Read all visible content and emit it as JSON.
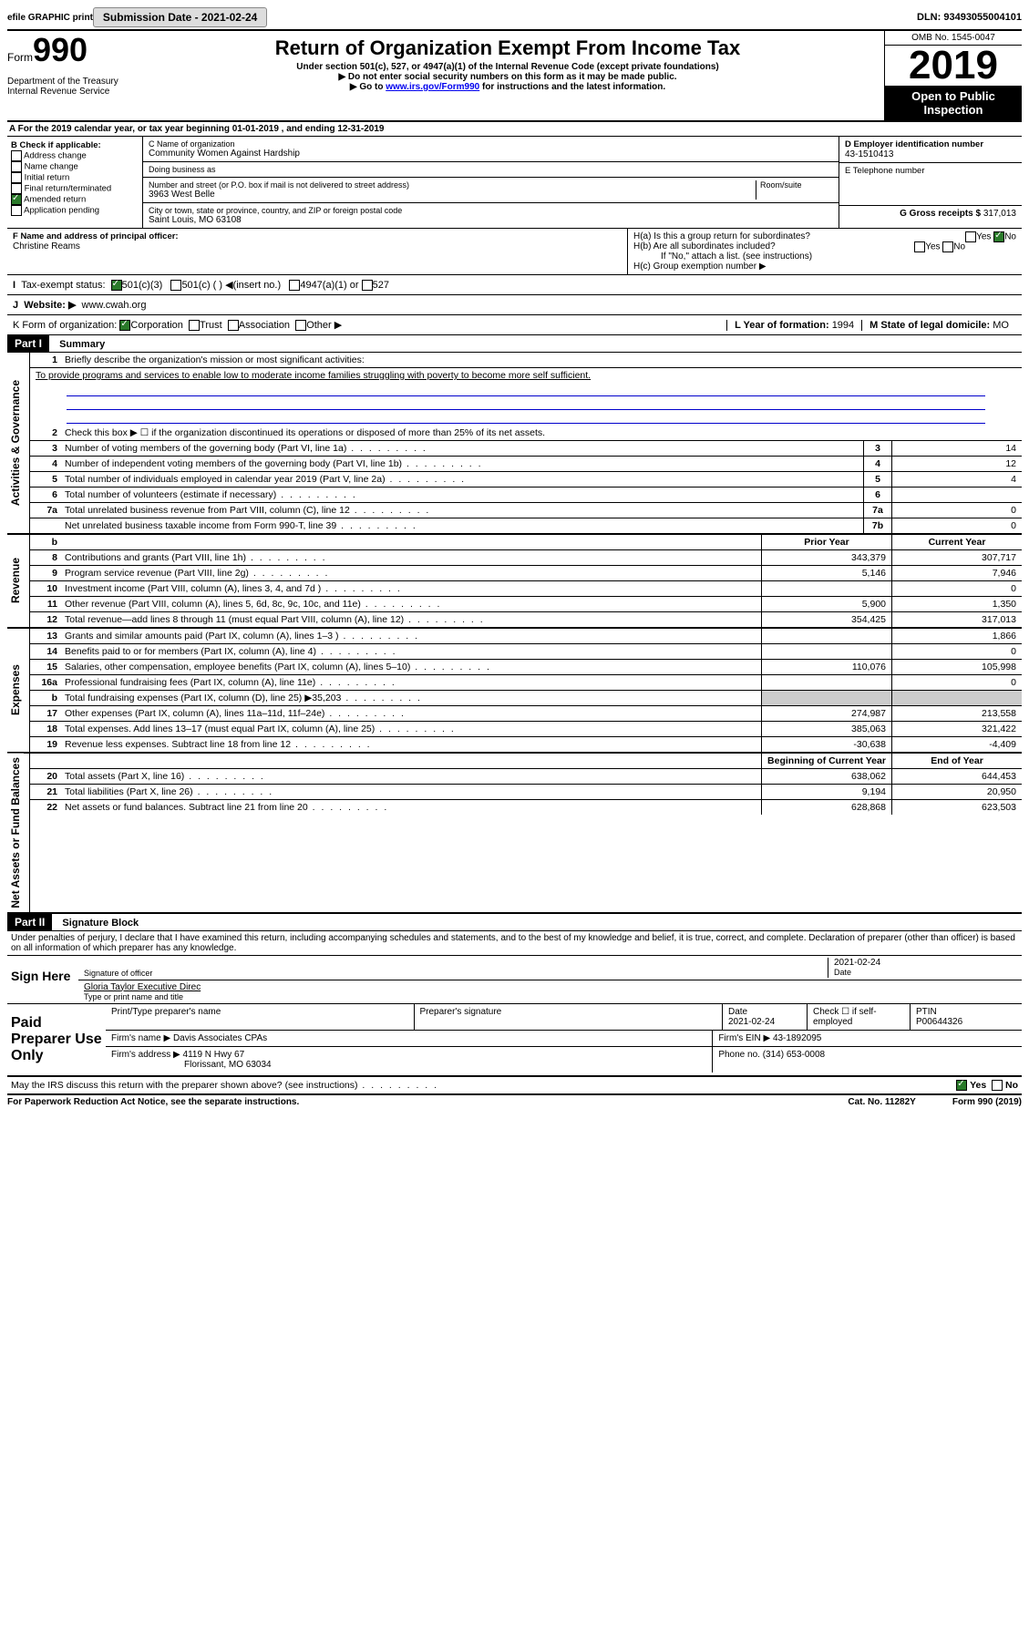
{
  "top": {
    "efile": "efile GRAPHIC print",
    "submission": "Submission Date - 2021-02-24",
    "dln": "DLN: 93493055004101"
  },
  "header": {
    "form": "Form",
    "form_no": "990",
    "title": "Return of Organization Exempt From Income Tax",
    "sub1": "Under section 501(c), 527, or 4947(a)(1) of the Internal Revenue Code (except private foundations)",
    "sub2": "▶ Do not enter social security numbers on this form as it may be made public.",
    "sub3_a": "▶ Go to ",
    "sub3_link": "www.irs.gov/Form990",
    "sub3_b": " for instructions and the latest information.",
    "dept": "Department of the Treasury\nInternal Revenue Service",
    "omb": "OMB No. 1545-0047",
    "year": "2019",
    "open": "Open to Public Inspection"
  },
  "sectionA": "For the 2019 calendar year, or tax year beginning 01-01-2019    , and ending 12-31-2019",
  "sectionB": {
    "title": "B Check if applicable:",
    "opts": [
      "Address change",
      "Name change",
      "Initial return",
      "Final return/terminated",
      "Amended return",
      "Application pending"
    ]
  },
  "sectionC": {
    "name_label": "C Name of organization",
    "name": "Community Women Against Hardship",
    "dba_label": "Doing business as",
    "addr_label": "Number and street (or P.O. box if mail is not delivered to street address)",
    "room_label": "Room/suite",
    "addr": "3963 West Belle",
    "city_label": "City or town, state or province, country, and ZIP or foreign postal code",
    "city": "Saint Louis, MO  63108"
  },
  "sectionD": {
    "label": "D Employer identification number",
    "ein": "43-1510413",
    "tel_label": "E Telephone number",
    "gross_label": "G Gross receipts $",
    "gross": "317,013"
  },
  "sectionF": {
    "label": "F  Name and address of principal officer:",
    "name": "Christine Reams"
  },
  "sectionH": {
    "ha": "H(a)  Is this a group return for subordinates?",
    "hb": "H(b)  Are all subordinates included?",
    "hb_note": "If \"No,\" attach a list. (see instructions)",
    "hc": "H(c)  Group exemption number ▶"
  },
  "sectionI": {
    "label": "Tax-exempt status:",
    "o1": "501(c)(3)",
    "o2": "501(c) (  ) ◀(insert no.)",
    "o3": "4947(a)(1) or",
    "o4": "527"
  },
  "sectionJ": {
    "label": "Website: ▶",
    "val": "www.cwah.org"
  },
  "sectionK": {
    "label": "K Form of organization:",
    "opts": [
      "Corporation",
      "Trust",
      "Association",
      "Other ▶"
    ],
    "l_label": "L Year of formation:",
    "l_val": "1994",
    "m_label": "M State of legal domicile:",
    "m_val": "MO"
  },
  "part1": {
    "header": "Part I",
    "title": "Summary",
    "line1": "Briefly describe the organization's mission or most significant activities:",
    "mission": "To provide programs and services to enable low to moderate income families struggling with poverty to become more self sufficient.",
    "line2": "Check this box ▶ ☐  if the organization discontinued its operations or disposed of more than 25% of its net assets.",
    "lines_top": [
      {
        "n": "3",
        "d": "Number of voting members of the governing body (Part VI, line 1a)",
        "b": "3",
        "v": "14"
      },
      {
        "n": "4",
        "d": "Number of independent voting members of the governing body (Part VI, line 1b)",
        "b": "4",
        "v": "12"
      },
      {
        "n": "5",
        "d": "Total number of individuals employed in calendar year 2019 (Part V, line 2a)",
        "b": "5",
        "v": "4"
      },
      {
        "n": "6",
        "d": "Total number of volunteers (estimate if necessary)",
        "b": "6",
        "v": ""
      },
      {
        "n": "7a",
        "d": "Total unrelated business revenue from Part VIII, column (C), line 12",
        "b": "7a",
        "v": "0"
      },
      {
        "n": "",
        "d": "Net unrelated business taxable income from Form 990-T, line 39",
        "b": "7b",
        "v": "0"
      }
    ],
    "col_headers": {
      "prior": "Prior Year",
      "current": "Current Year"
    },
    "revenue": [
      {
        "n": "8",
        "d": "Contributions and grants (Part VIII, line 1h)",
        "p": "343,379",
        "c": "307,717"
      },
      {
        "n": "9",
        "d": "Program service revenue (Part VIII, line 2g)",
        "p": "5,146",
        "c": "7,946"
      },
      {
        "n": "10",
        "d": "Investment income (Part VIII, column (A), lines 3, 4, and 7d )",
        "p": "",
        "c": "0"
      },
      {
        "n": "11",
        "d": "Other revenue (Part VIII, column (A), lines 5, 6d, 8c, 9c, 10c, and 11e)",
        "p": "5,900",
        "c": "1,350"
      },
      {
        "n": "12",
        "d": "Total revenue—add lines 8 through 11 (must equal Part VIII, column (A), line 12)",
        "p": "354,425",
        "c": "317,013"
      }
    ],
    "expenses": [
      {
        "n": "13",
        "d": "Grants and similar amounts paid (Part IX, column (A), lines 1–3 )",
        "p": "",
        "c": "1,866"
      },
      {
        "n": "14",
        "d": "Benefits paid to or for members (Part IX, column (A), line 4)",
        "p": "",
        "c": "0"
      },
      {
        "n": "15",
        "d": "Salaries, other compensation, employee benefits (Part IX, column (A), lines 5–10)",
        "p": "110,076",
        "c": "105,998"
      },
      {
        "n": "16a",
        "d": "Professional fundraising fees (Part IX, column (A), line 11e)",
        "p": "",
        "c": "0"
      },
      {
        "n": "b",
        "d": "Total fundraising expenses (Part IX, column (D), line 25) ▶35,203",
        "p": "",
        "c": ""
      },
      {
        "n": "17",
        "d": "Other expenses (Part IX, column (A), lines 11a–11d, 11f–24e)",
        "p": "274,987",
        "c": "213,558"
      },
      {
        "n": "18",
        "d": "Total expenses. Add lines 13–17 (must equal Part IX, column (A), line 25)",
        "p": "385,063",
        "c": "321,422"
      },
      {
        "n": "19",
        "d": "Revenue less expenses. Subtract line 18 from line 12",
        "p": "-30,638",
        "c": "-4,409"
      }
    ],
    "net_headers": {
      "b": "Beginning of Current Year",
      "e": "End of Year"
    },
    "netassets": [
      {
        "n": "20",
        "d": "Total assets (Part X, line 16)",
        "p": "638,062",
        "c": "644,453"
      },
      {
        "n": "21",
        "d": "Total liabilities (Part X, line 26)",
        "p": "9,194",
        "c": "20,950"
      },
      {
        "n": "22",
        "d": "Net assets or fund balances. Subtract line 21 from line 20",
        "p": "628,868",
        "c": "623,503"
      }
    ],
    "vert_gov": "Activities & Governance",
    "vert_rev": "Revenue",
    "vert_exp": "Expenses",
    "vert_net": "Net Assets or Fund Balances"
  },
  "part2": {
    "header": "Part II",
    "title": "Signature Block",
    "perjury": "Under penalties of perjury, I declare that I have examined this return, including accompanying schedules and statements, and to the best of my knowledge and belief, it is true, correct, and complete. Declaration of preparer (other than officer) is based on all information of which preparer has any knowledge.",
    "sign_here": "Sign Here",
    "sig_date": "2021-02-24",
    "sig_officer": "Signature of officer",
    "date_label": "Date",
    "typed_name": "Gloria Taylor Executive Direc",
    "typed_label": "Type or print name and title"
  },
  "paid": {
    "label": "Paid Preparer Use Only",
    "h_name": "Print/Type preparer's name",
    "h_sig": "Preparer's signature",
    "h_date": "Date",
    "date": "2021-02-24",
    "check_label": "Check ☐ if self-employed",
    "ptin_label": "PTIN",
    "ptin": "P00644326",
    "firm_name_label": "Firm's name    ▶",
    "firm_name": "Davis Associates CPAs",
    "firm_ein_label": "Firm's EIN ▶",
    "firm_ein": "43-1892095",
    "firm_addr_label": "Firm's address ▶",
    "firm_addr": "4119 N Hwy 67",
    "firm_city": "Florissant, MO  63034",
    "phone_label": "Phone no.",
    "phone": "(314) 653-0008"
  },
  "discuss": "May the IRS discuss this return with the preparer shown above? (see instructions)",
  "footer": {
    "paperwork": "For Paperwork Reduction Act Notice, see the separate instructions.",
    "cat": "Cat. No. 11282Y",
    "form": "Form 990 (2019)"
  },
  "labels": {
    "yes": "Yes",
    "no": "No"
  }
}
